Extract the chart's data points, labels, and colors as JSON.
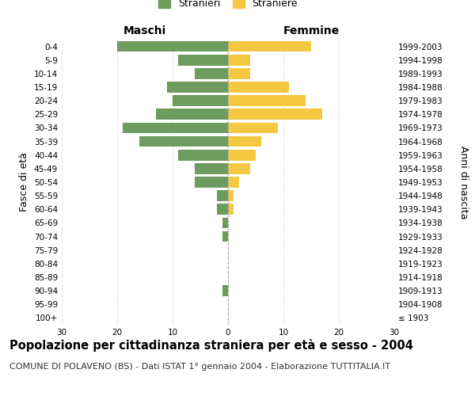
{
  "age_groups": [
    "100+",
    "95-99",
    "90-94",
    "85-89",
    "80-84",
    "75-79",
    "70-74",
    "65-69",
    "60-64",
    "55-59",
    "50-54",
    "45-49",
    "40-44",
    "35-39",
    "30-34",
    "25-29",
    "20-24",
    "15-19",
    "10-14",
    "5-9",
    "0-4"
  ],
  "birth_years": [
    "≤ 1903",
    "1904-1908",
    "1909-1913",
    "1914-1918",
    "1919-1923",
    "1924-1928",
    "1929-1933",
    "1934-1938",
    "1939-1943",
    "1944-1948",
    "1949-1953",
    "1954-1958",
    "1959-1963",
    "1964-1968",
    "1969-1973",
    "1974-1978",
    "1979-1983",
    "1984-1988",
    "1989-1993",
    "1994-1998",
    "1999-2003"
  ],
  "maschi": [
    0,
    0,
    1,
    0,
    0,
    0,
    1,
    1,
    2,
    2,
    6,
    6,
    9,
    16,
    19,
    13,
    10,
    11,
    6,
    9,
    20
  ],
  "femmine": [
    0,
    0,
    0,
    0,
    0,
    0,
    0,
    0,
    1,
    1,
    2,
    4,
    5,
    6,
    9,
    17,
    14,
    11,
    4,
    4,
    15
  ],
  "color_maschi": "#6e9b5e",
  "color_femmine": "#f5c842",
  "xlim": 30,
  "title": "Popolazione per cittadinanza straniera per età e sesso - 2004",
  "subtitle": "COMUNE DI POLAVENO (BS) - Dati ISTAT 1° gennaio 2004 - Elaborazione TUTTITALIA.IT",
  "ylabel_left": "Fasce di età",
  "ylabel_right": "Anni di nascita",
  "xlabel_left": "Maschi",
  "xlabel_right": "Femmine",
  "legend_maschi": "Stranieri",
  "legend_femmine": "Straniere",
  "bg_color": "#ffffff",
  "grid_color": "#cccccc",
  "bar_height": 0.8,
  "title_fontsize": 10.5,
  "subtitle_fontsize": 8,
  "tick_fontsize": 7.5,
  "label_fontsize": 9,
  "dashed_line_color": "#aaaaaa"
}
